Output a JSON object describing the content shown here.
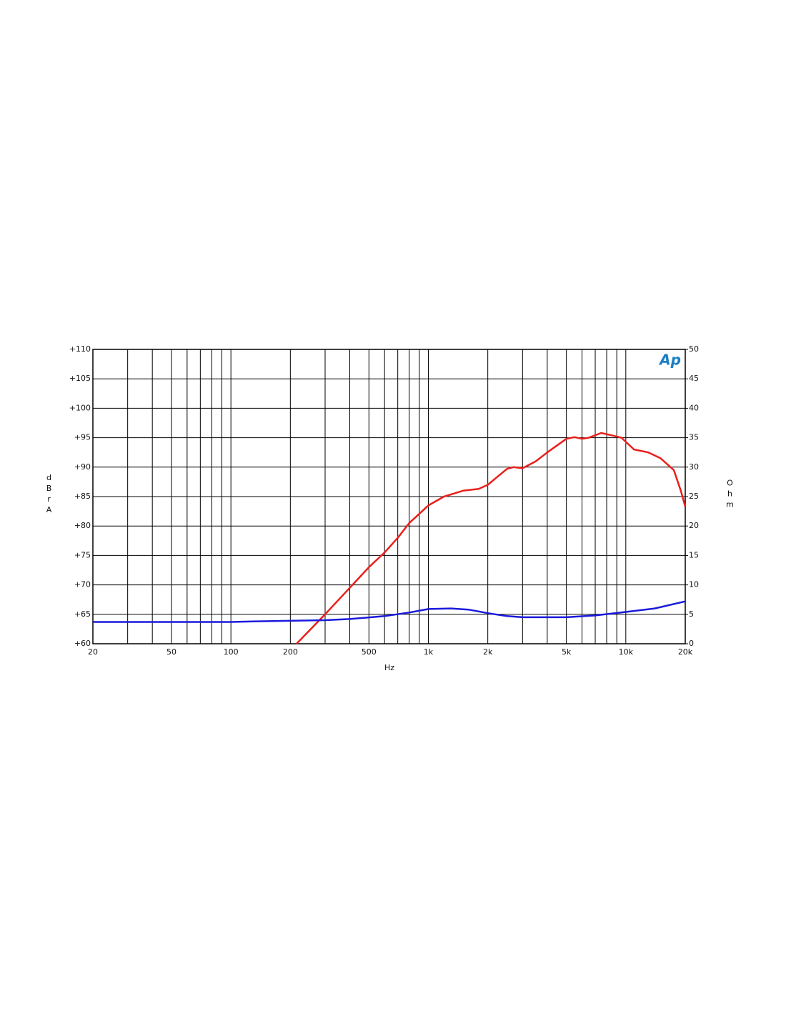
{
  "chart_data": {
    "type": "line",
    "logo_text": "Ap",
    "x_label": "Hz",
    "y_label": "dBrA",
    "y2_label": "Ohm",
    "xscale": "log",
    "grid": true,
    "xlim": [
      20,
      20000
    ],
    "xticks": [
      20,
      50,
      100,
      200,
      500,
      {
        "value": 1000,
        "label": "1k"
      },
      {
        "value": 2000,
        "label": "2k"
      },
      {
        "value": 5000,
        "label": "5k"
      },
      {
        "value": 10000,
        "label": "10k"
      },
      {
        "value": 20000,
        "label": "20k"
      }
    ],
    "xminor_ticks": [
      30,
      40,
      60,
      70,
      80,
      90,
      300,
      400,
      600,
      700,
      800,
      900,
      3000,
      4000,
      6000,
      7000,
      8000,
      9000
    ],
    "ylim": [
      60,
      110
    ],
    "yticks": [
      {
        "value": 60,
        "label": "+60"
      },
      {
        "value": 65,
        "label": "+65"
      },
      {
        "value": 70,
        "label": "+70"
      },
      {
        "value": 75,
        "label": "+75"
      },
      {
        "value": 80,
        "label": "+80"
      },
      {
        "value": 85,
        "label": "+85"
      },
      {
        "value": 90,
        "label": "+90"
      },
      {
        "value": 95,
        "label": "+95"
      },
      {
        "value": 100,
        "label": "+100"
      },
      {
        "value": 105,
        "label": "+105"
      },
      {
        "value": 110,
        "label": "+110"
      }
    ],
    "y2lim": [
      0,
      50
    ],
    "y2ticks": [
      0,
      5,
      10,
      15,
      20,
      25,
      30,
      35,
      40,
      45,
      50
    ],
    "series": [
      {
        "color": "#e8201c",
        "axis": "y",
        "x": [
          215,
          300,
          400,
          500,
          600,
          700,
          800,
          1000,
          1200,
          1500,
          1800,
          2000,
          2500,
          2700,
          3000,
          3500,
          4000,
          5000,
          5500,
          6000,
          6500,
          7500,
          8500,
          9500,
          11000,
          13000,
          15000,
          17500,
          19000,
          20000
        ],
        "values": [
          60,
          65,
          69.5,
          73,
          75.5,
          78,
          80.5,
          83.5,
          85,
          86,
          86.3,
          87,
          89.7,
          90,
          89.8,
          91,
          92.5,
          94.8,
          95.1,
          94.8,
          95,
          95.8,
          95.4,
          95,
          93,
          92.5,
          91.5,
          89.5,
          86,
          83.3
        ]
      },
      {
        "color": "#1a1adc",
        "axis": "y2",
        "x": [
          20,
          100,
          130,
          300,
          400,
          600,
          800,
          1000,
          1300,
          1600,
          2000,
          2500,
          3000,
          5000,
          7000,
          10000,
          14000,
          20000
        ],
        "values": [
          3.7,
          3.7,
          3.8,
          4.0,
          4.2,
          4.7,
          5.3,
          5.9,
          6.0,
          5.8,
          5.2,
          4.7,
          4.5,
          4.5,
          4.8,
          5.4,
          6.0,
          7.2
        ]
      }
    ]
  }
}
